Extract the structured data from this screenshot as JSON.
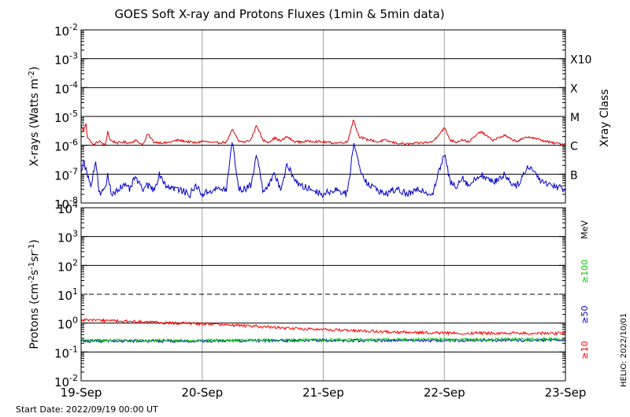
{
  "title": "GOES Soft X-ray and Protons Fluxes   (1min & 5min data)",
  "footer": {
    "start_date": "Start Date: 2022/09/19 00:00 UT",
    "stamp": "HELIO: 2022/10/01"
  },
  "colors": {
    "xray_long": "#dd0000",
    "xray_short": "#0000cc",
    "p10": "#ff0000",
    "p50": "#0000cc",
    "p100": "#00cc00",
    "grid": "#000000",
    "day_line": "#a0a0a0"
  },
  "chart_data": [
    {
      "type": "line",
      "title": "GOES Soft X-ray and Protons Fluxes   (1min & 5min data)",
      "ylabel": "X-rays (Watts m-2)",
      "ylabel_parts": [
        "X-rays (Watts m",
        "-2",
        ")"
      ],
      "y_scale": "log",
      "ylim": [
        1e-08,
        0.01
      ],
      "y_ticks": [
        {
          "value": 1e-08,
          "base": "10",
          "exp": "-8"
        },
        {
          "value": 1e-07,
          "base": "10",
          "exp": "-7"
        },
        {
          "value": 1e-06,
          "base": "10",
          "exp": "-6"
        },
        {
          "value": 1e-05,
          "base": "10",
          "exp": "-5"
        },
        {
          "value": 0.0001,
          "base": "10",
          "exp": "-4"
        },
        {
          "value": 0.001,
          "base": "10",
          "exp": "-3"
        },
        {
          "value": 0.01,
          "base": "10",
          "exp": "-2"
        }
      ],
      "right_axis_title": "Xray Class",
      "classes": [
        {
          "label": "B",
          "value": 1e-07
        },
        {
          "label": "C",
          "value": 1e-06
        },
        {
          "label": "M",
          "value": 1e-05
        },
        {
          "label": "X",
          "value": 0.0001
        },
        {
          "label": "X10",
          "value": 0.001
        }
      ],
      "xlim": [
        0,
        4
      ],
      "x_ticks": [
        0,
        1,
        2,
        3,
        4
      ],
      "x_tick_labels": [
        "19-Sep",
        "20-Sep",
        "21-Sep",
        "22-Sep",
        "23-Sep"
      ],
      "series": [
        {
          "key": "xray_long",
          "x": [
            0,
            0.02,
            0.04,
            0.05,
            0.07,
            0.09,
            0.1,
            0.11,
            0.15,
            0.17,
            0.2,
            0.22,
            0.24,
            0.3,
            0.35,
            0.4,
            0.45,
            0.5,
            0.52,
            0.55,
            0.6,
            0.7,
            0.8,
            0.9,
            0.95,
            1.0,
            1.1,
            1.2,
            1.25,
            1.3,
            1.35,
            1.4,
            1.45,
            1.5,
            1.55,
            1.6,
            1.65,
            1.7,
            1.75,
            1.8,
            1.9,
            2.0,
            2.1,
            2.2,
            2.25,
            2.28,
            2.3,
            2.35,
            2.4,
            2.45,
            2.5,
            2.6,
            2.7,
            2.8,
            2.9,
            3.0,
            3.05,
            3.1,
            3.15,
            3.2,
            3.3,
            3.4,
            3.5,
            3.55,
            3.6,
            3.7,
            3.8,
            3.9,
            4.0
          ],
          "y": [
            5e-06,
            3e-06,
            6e-06,
            2e-06,
            1.5e-06,
            1.2e-06,
            1e-06,
            1.1e-06,
            1.4e-06,
            1.2e-06,
            1e-06,
            3e-06,
            1.5e-06,
            1.2e-06,
            1.3e-06,
            1.2e-06,
            1.5e-06,
            1.1e-06,
            1.2e-06,
            2.5e-06,
            1.3e-06,
            1.2e-06,
            1.5e-06,
            1.3e-06,
            1.2e-06,
            1.4e-06,
            1.2e-06,
            1.3e-06,
            3.5e-06,
            1.4e-06,
            1.3e-06,
            1.5e-06,
            5e-06,
            1.5e-06,
            1.3e-06,
            1.8e-06,
            1.4e-06,
            2e-06,
            1.4e-06,
            1.3e-06,
            1.4e-06,
            1.3e-06,
            1.2e-06,
            1.3e-06,
            8e-06,
            3e-06,
            2e-06,
            1.6e-06,
            1.5e-06,
            1.3e-06,
            1.5e-06,
            1.2e-06,
            1.1e-06,
            1.2e-06,
            1.3e-06,
            4e-06,
            1.5e-06,
            1.3e-06,
            1.6e-06,
            1.3e-06,
            3e-06,
            1.5e-06,
            2.2e-06,
            1.6e-06,
            1.4e-06,
            2e-06,
            1.5e-06,
            1.2e-06,
            1.1e-06
          ]
        },
        {
          "key": "xray_short",
          "x": [
            0,
            0.02,
            0.05,
            0.08,
            0.12,
            0.15,
            0.2,
            0.22,
            0.25,
            0.3,
            0.35,
            0.4,
            0.45,
            0.5,
            0.55,
            0.6,
            0.65,
            0.7,
            0.8,
            0.9,
            0.95,
            1.0,
            1.1,
            1.2,
            1.25,
            1.3,
            1.35,
            1.4,
            1.45,
            1.5,
            1.55,
            1.6,
            1.65,
            1.7,
            1.8,
            1.9,
            2.0,
            2.1,
            2.2,
            2.25,
            2.28,
            2.32,
            2.38,
            2.45,
            2.5,
            2.6,
            2.7,
            2.8,
            2.9,
            3.0,
            3.05,
            3.1,
            3.15,
            3.2,
            3.3,
            3.4,
            3.5,
            3.55,
            3.6,
            3.7,
            3.8,
            3.9,
            4.0
          ],
          "y": [
            1.2e-07,
            3e-07,
            1e-07,
            4e-08,
            3e-07,
            2e-08,
            3e-08,
            1e-07,
            2e-08,
            3e-08,
            4e-08,
            3e-08,
            8e-08,
            3e-08,
            4e-08,
            3e-08,
            1e-07,
            4e-08,
            3e-08,
            2e-08,
            4e-08,
            2e-08,
            3e-08,
            3e-08,
            1.5e-06,
            3e-08,
            3e-08,
            4e-08,
            5e-07,
            3e-08,
            4e-08,
            1e-07,
            3e-08,
            2e-07,
            4e-08,
            3e-08,
            2e-08,
            3e-08,
            2e-08,
            1.2e-06,
            4e-07,
            1e-07,
            4e-08,
            3e-08,
            2e-08,
            3e-08,
            2e-08,
            3e-08,
            2e-08,
            5e-07,
            5e-08,
            4e-08,
            8e-08,
            4e-08,
            1e-07,
            5e-08,
            1e-07,
            5e-08,
            4e-08,
            2e-07,
            6e-08,
            4e-08,
            3e-08
          ]
        }
      ]
    },
    {
      "type": "line",
      "ylabel": "Protons (cm-2s-1sr-1)",
      "ylabel_parts": [
        "Protons (cm",
        "-2",
        "s",
        "-1",
        "sr",
        "-1",
        ")"
      ],
      "y_scale": "log",
      "ylim": [
        0.01,
        10000
      ],
      "y_ticks": [
        {
          "value": 0.01,
          "base": "10",
          "exp": "-2"
        },
        {
          "value": 0.1,
          "base": "10",
          "exp": "-1"
        },
        {
          "value": 1,
          "base": "10",
          "exp": "0"
        },
        {
          "value": 10,
          "base": "10",
          "exp": "1"
        },
        {
          "value": 100,
          "base": "10",
          "exp": "2"
        },
        {
          "value": 1000,
          "base": "10",
          "exp": "3"
        },
        {
          "value": 10000,
          "base": "10",
          "exp": "4"
        }
      ],
      "threshold": 10,
      "xlim": [
        0,
        4
      ],
      "x_ticks": [
        0,
        1,
        2,
        3,
        4
      ],
      "x_tick_labels": [
        "19-Sep",
        "20-Sep",
        "21-Sep",
        "22-Sep",
        "23-Sep"
      ],
      "legend": [
        "≥10",
        "≥50",
        "≥100",
        "MeV"
      ],
      "series": [
        {
          "key": "p10",
          "name": "≥10",
          "x": [
            0,
            0.25,
            0.5,
            0.75,
            1.0,
            1.25,
            1.5,
            1.75,
            2.0,
            2.25,
            2.5,
            2.75,
            3.0,
            3.25,
            3.5,
            3.75,
            4.0
          ],
          "y": [
            1.3,
            1.2,
            1.1,
            1.0,
            0.95,
            0.85,
            0.75,
            0.65,
            0.6,
            0.55,
            0.5,
            0.48,
            0.45,
            0.45,
            0.45,
            0.44,
            0.45
          ]
        },
        {
          "key": "p50",
          "name": "≥50",
          "x": [
            0,
            1,
            2,
            3,
            4
          ],
          "y": [
            0.24,
            0.24,
            0.25,
            0.25,
            0.26
          ]
        },
        {
          "key": "p100",
          "name": "≥100",
          "x": [
            0,
            1,
            2,
            3,
            4
          ],
          "y": [
            0.25,
            0.25,
            0.26,
            0.27,
            0.28
          ]
        }
      ]
    }
  ]
}
